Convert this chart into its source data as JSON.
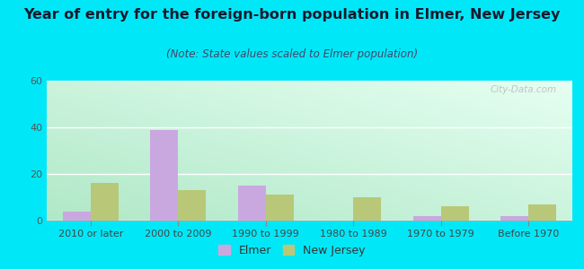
{
  "title": "Year of entry for the foreign-born population in Elmer, New Jersey",
  "subtitle": "(Note: State values scaled to Elmer population)",
  "categories": [
    "2010 or later",
    "2000 to 2009",
    "1990 to 1999",
    "1980 to 1989",
    "1970 to 1979",
    "Before 1970"
  ],
  "elmer_values": [
    4,
    39,
    15,
    0,
    2,
    2
  ],
  "nj_values": [
    16,
    13,
    11,
    10,
    6,
    7
  ],
  "elmer_color": "#c9a8e0",
  "nj_color": "#b8c878",
  "ylim": [
    0,
    60
  ],
  "yticks": [
    0,
    20,
    40,
    60
  ],
  "background_color": "#00e8f8",
  "bar_width": 0.32,
  "title_fontsize": 11.5,
  "subtitle_fontsize": 8.5,
  "tick_fontsize": 8,
  "legend_fontsize": 9,
  "watermark": "City-Data.com"
}
